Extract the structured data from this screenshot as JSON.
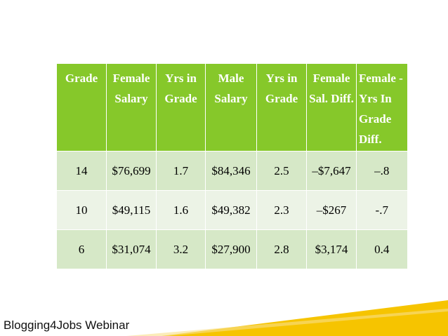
{
  "table": {
    "header": [
      "Grade",
      "Female Salary",
      "Yrs in Grade",
      "Male Salary",
      "Yrs in Grade",
      "Female Sal. Diff.",
      "Female -Yrs In Grade Diff."
    ],
    "rows": [
      [
        "14",
        "$76,699",
        "1.7",
        "$84,346",
        "2.5",
        "–$7,647",
        "–.8"
      ],
      [
        "10",
        "$49,115",
        "1.6",
        "$49,382",
        "2.3",
        "–$267",
        "-.7"
      ],
      [
        "6",
        "$31,074",
        "3.2",
        "$27,900",
        "2.8",
        "$3,174",
        "0.4"
      ]
    ]
  },
  "footer": "Blogging4Jobs Webinar"
}
